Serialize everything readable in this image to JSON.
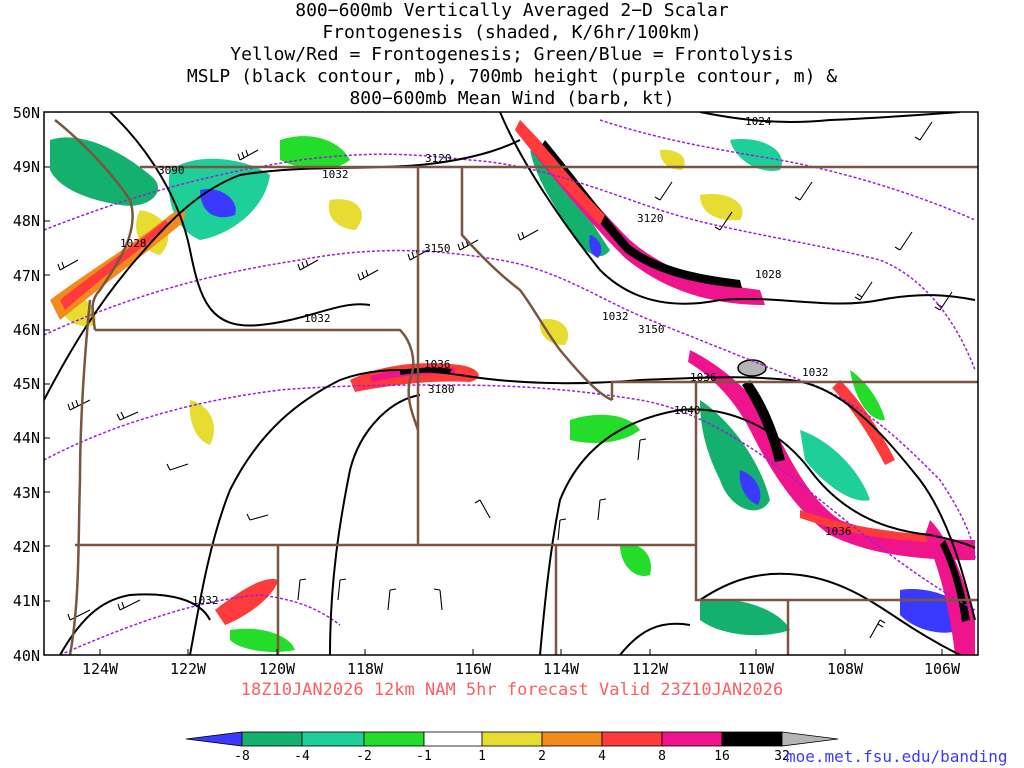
{
  "title_lines": [
    "800−600mb Vertically Averaged 2−D Scalar",
    "Frontogenesis (shaded, K/6hr/100km)",
    "Yellow/Red = Frontogenesis;  Green/Blue = Frontolysis",
    "MSLP (black contour, mb), 700mb height (purple contour, m) &",
    "800−600mb Mean Wind (barb, kt)"
  ],
  "lat_labels": [
    "50N",
    "49N",
    "48N",
    "47N",
    "46N",
    "45N",
    "44N",
    "43N",
    "42N",
    "41N",
    "40N"
  ],
  "lon_labels": [
    "124W",
    "122W",
    "120W",
    "118W",
    "116W",
    "114W",
    "112W",
    "110W",
    "108W",
    "106W"
  ],
  "contour_labels": [
    "1024",
    "3090",
    "1032",
    "3120",
    "3120",
    "1028",
    "3150",
    "1028",
    "1032",
    "1032",
    "3150",
    "1036",
    "1036",
    "1040",
    "1032",
    "3180",
    "1036",
    "1032"
  ],
  "valid_text": "18Z10JAN2026  12km  NAM  5hr  forecast  Valid  23Z10JAN2026",
  "colorbar": {
    "colors": [
      "#3a3aff",
      "#14b06e",
      "#1ecf9a",
      "#23dd2a",
      "#ffffff",
      "#e6dc32",
      "#f28a1e",
      "#ff3a3a",
      "#f0148c",
      "#000000",
      "#b4b4b4"
    ],
    "labels": [
      "-8",
      "-4",
      "-2",
      "-1",
      "1",
      "2",
      "4",
      "8",
      "16",
      "32"
    ]
  },
  "credit": "moe.met.fsu.edu/banding"
}
